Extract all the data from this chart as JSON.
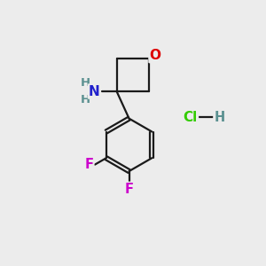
{
  "bg_color": "#ececec",
  "atom_colors": {
    "C": "#000000",
    "N": "#2020cc",
    "O": "#dd0000",
    "F": "#cc00cc",
    "H": "#5a9090",
    "Cl": "#33cc00"
  },
  "bond_color": "#1a1a1a",
  "bond_width": 1.6,
  "font_size": 10.5
}
